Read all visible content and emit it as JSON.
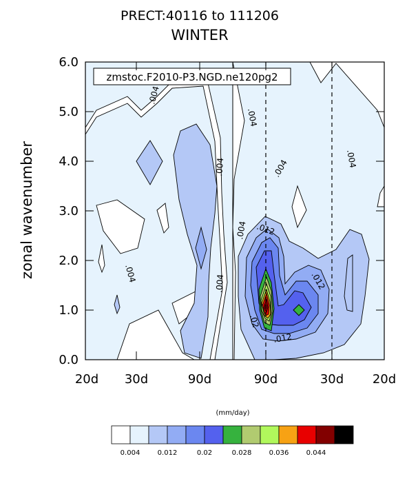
{
  "chart_data": {
    "type": "heatmap",
    "title": "PRECT:40116 to 111206",
    "subtitle": "WINTER",
    "ylabel": "zonal wavenumber",
    "xlabel": "",
    "annotation_box": "zmstoc.F2010-P3.NGD.ne120pg2",
    "x_tick_labels": [
      "20d",
      "30d",
      "90d",
      "90d",
      "30d",
      "20d"
    ],
    "y_tick_labels": [
      "0.0",
      "1.0",
      "2.0",
      "3.0",
      "4.0",
      "5.0",
      "6.0"
    ],
    "ylim": [
      0,
      6
    ],
    "units_label": "(mm/day)",
    "colorbar": {
      "labels": [
        "0.004",
        "0.012",
        "0.02",
        "0.028",
        "0.036",
        "0.044"
      ],
      "levels": [
        0.004,
        0.008,
        0.012,
        0.016,
        0.02,
        0.024,
        0.028,
        0.032,
        0.036,
        0.04,
        0.044,
        0.048
      ],
      "colors": [
        "#ffffff",
        "#e6f3fd",
        "#b4c8f6",
        "#92acf4",
        "#6b87f0",
        "#5461ee",
        "#36b23e",
        "#b1cb70",
        "#b1f85c",
        "#f7a214",
        "#e80000",
        "#820000",
        "#000000"
      ]
    },
    "contour_labels": [
      ".004",
      ".004",
      ".004",
      ".004",
      ".004",
      ".004",
      ".004",
      ".004",
      ".012",
      ".012",
      ".012",
      ".02"
    ],
    "peaks": [
      {
        "region": "eastward",
        "wavenumber": 1.0,
        "value": 0.044,
        "location": "90d"
      },
      {
        "region": "eastward",
        "wavenumber": 1.0,
        "value": 0.028,
        "location": "between 90d and 30d"
      },
      {
        "region": "westward",
        "wavenumber": 4.0,
        "value": 0.012,
        "location": "between 30d and 90d"
      }
    ],
    "dashed_lines": [
      "90d",
      "30d"
    ],
    "solid_line": "center"
  }
}
